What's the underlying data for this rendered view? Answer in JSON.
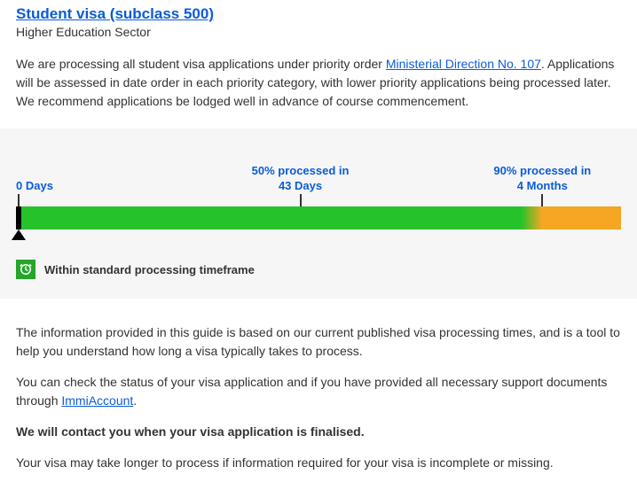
{
  "header": {
    "title": "Student visa (subclass 500)",
    "subtitle": "Higher Education Sector"
  },
  "intro": {
    "text_before": "We are processing all student visa applications under priority order ",
    "link_text": "Ministerial Direction No. 107",
    "text_after": ". Applications will be assessed in date order in each priority category, with lower priority applications being processed later. We recommend applications be lodged well in advance of course commencement."
  },
  "timeline": {
    "markers": [
      {
        "pos_pct": 0,
        "line1": "0 Days",
        "line2": ""
      },
      {
        "pos_pct": 47,
        "line1": "50% processed in",
        "line2": "43 Days"
      },
      {
        "pos_pct": 87,
        "line1": "90% processed in",
        "line2": "4 Months"
      }
    ],
    "bar": {
      "green_start_pct": 0.9,
      "green_end_pct": 87,
      "orange_start_pct": 87,
      "orange_end_pct": 100,
      "green_color": "#25c22a",
      "orange_color": "#f5a623",
      "chart_bg": "#f6f6f6"
    },
    "status_text": "Within standard processing timeframe"
  },
  "body": {
    "p1": "The information provided in this guide is based on our current published visa processing times, and is a tool to help you understand how long a visa typically takes to process.",
    "p2_before": "You can check the status of your visa application and if you have provided all necessary support documents through ",
    "p2_link": "ImmiAccount",
    "p2_after": ".",
    "p3": "We will contact you when your visa application is finalised.",
    "p4": "Your visa may take longer to process if information required for your visa is incomplete or missing."
  }
}
